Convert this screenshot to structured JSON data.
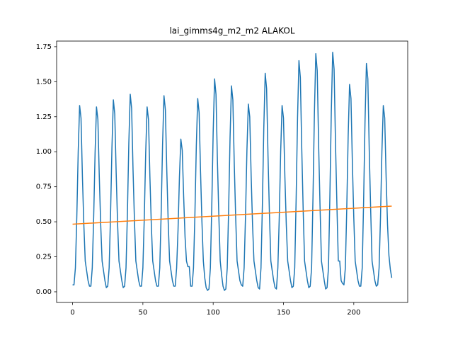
{
  "chart_data": {
    "type": "line",
    "title": "lai_gimms4g_m2_m2 ALAKOL",
    "xlim": [
      -11.35,
      238.35
    ],
    "ylim": [
      -0.076,
      1.79
    ],
    "xticks": [
      0,
      50,
      100,
      150,
      200
    ],
    "yticks": [
      {
        "value": 0,
        "label": "0.00"
      },
      {
        "value": 0.25,
        "label": "0.25"
      },
      {
        "value": 0.5,
        "label": "0.50"
      },
      {
        "value": 0.75,
        "label": "0.75"
      },
      {
        "value": 1,
        "label": "1.00"
      },
      {
        "value": 1.25,
        "label": "1.25"
      },
      {
        "value": 1.5,
        "label": "1.50"
      },
      {
        "value": 1.75,
        "label": "1.75"
      }
    ],
    "series": [
      {
        "color": "#1f77b4",
        "x": [
          0,
          1,
          2,
          3,
          4,
          5,
          6,
          7,
          8,
          9,
          10,
          11,
          12,
          13,
          14,
          15,
          16,
          17,
          18,
          19,
          20,
          21,
          22,
          23,
          24,
          25,
          26,
          27,
          28,
          29,
          30,
          31,
          32,
          33,
          34,
          35,
          36,
          37,
          38,
          39,
          40,
          41,
          42,
          43,
          44,
          45,
          46,
          47,
          48,
          49,
          50,
          51,
          52,
          53,
          54,
          55,
          56,
          57,
          58,
          59,
          60,
          61,
          62,
          63,
          64,
          65,
          66,
          67,
          68,
          69,
          70,
          71,
          72,
          73,
          74,
          75,
          76,
          77,
          78,
          79,
          80,
          81,
          82,
          83,
          84,
          85,
          86,
          87,
          88,
          89,
          90,
          91,
          92,
          93,
          94,
          95,
          96,
          97,
          98,
          99,
          100,
          101,
          102,
          103,
          104,
          105,
          106,
          107,
          108,
          109,
          110,
          111,
          112,
          113,
          114,
          115,
          116,
          117,
          118,
          119,
          120,
          121,
          122,
          123,
          124,
          125,
          126,
          127,
          128,
          129,
          130,
          131,
          132,
          133,
          134,
          135,
          136,
          137,
          138,
          139,
          140,
          141,
          142,
          143,
          144,
          145,
          146,
          147,
          148,
          149,
          150,
          151,
          152,
          153,
          154,
          155,
          156,
          157,
          158,
          159,
          160,
          161,
          162,
          163,
          164,
          165,
          166,
          167,
          168,
          169,
          170,
          171,
          172,
          173,
          174,
          175,
          176,
          177,
          178,
          179,
          180,
          181,
          182,
          183,
          184,
          185,
          186,
          187,
          188,
          189,
          190,
          191,
          192,
          193,
          194,
          195,
          196,
          197,
          198,
          199,
          200,
          201,
          202,
          203,
          204,
          205,
          206,
          207,
          208,
          209,
          210,
          211,
          212,
          213,
          214,
          215,
          216,
          217,
          218,
          219,
          220,
          221,
          222,
          223,
          224,
          225,
          226,
          227
        ],
        "values": [
          0.05,
          0.05,
          0.17,
          0.53,
          1.0,
          1.33,
          1.24,
          0.82,
          0.48,
          0.22,
          0.15,
          0.08,
          0.04,
          0.04,
          0.17,
          0.53,
          0.99,
          1.32,
          1.23,
          0.82,
          0.48,
          0.22,
          0.15,
          0.08,
          0.03,
          0.04,
          0.17,
          0.55,
          1.03,
          1.37,
          1.27,
          0.85,
          0.49,
          0.22,
          0.15,
          0.08,
          0.03,
          0.04,
          0.17,
          0.56,
          1.06,
          1.41,
          1.31,
          0.87,
          0.51,
          0.22,
          0.15,
          0.08,
          0.04,
          0.04,
          0.17,
          0.53,
          0.99,
          1.32,
          1.23,
          0.82,
          0.48,
          0.22,
          0.15,
          0.08,
          0.04,
          0.04,
          0.17,
          0.56,
          1.05,
          1.4,
          1.3,
          0.87,
          0.5,
          0.22,
          0.15,
          0.08,
          0.04,
          0.04,
          0.17,
          0.44,
          0.82,
          1.09,
          1.01,
          0.68,
          0.39,
          0.22,
          0.18,
          0.18,
          0.04,
          0.04,
          0.17,
          0.55,
          1.04,
          1.38,
          1.28,
          0.86,
          0.5,
          0.22,
          0.1,
          0.03,
          0.01,
          0.02,
          0.17,
          0.61,
          1.14,
          1.52,
          1.41,
          0.94,
          0.55,
          0.22,
          0.12,
          0.04,
          0.01,
          0.02,
          0.17,
          0.59,
          1.1,
          1.47,
          1.37,
          0.91,
          0.53,
          0.22,
          0.15,
          0.08,
          0.05,
          0.04,
          0.17,
          0.54,
          1.01,
          1.34,
          1.25,
          0.83,
          0.48,
          0.22,
          0.15,
          0.08,
          0.03,
          0.02,
          0.17,
          0.62,
          1.17,
          1.56,
          1.45,
          0.97,
          0.56,
          0.22,
          0.15,
          0.08,
          0.03,
          0.02,
          0.17,
          0.53,
          1.0,
          1.33,
          1.24,
          0.82,
          0.48,
          0.22,
          0.15,
          0.08,
          0.03,
          0.04,
          0.17,
          0.66,
          1.24,
          1.65,
          1.53,
          1.02,
          0.59,
          0.22,
          0.15,
          0.08,
          0.03,
          0.04,
          0.17,
          0.68,
          1.28,
          1.7,
          1.58,
          1.05,
          0.61,
          0.22,
          0.15,
          0.08,
          0.02,
          0.03,
          0.17,
          0.68,
          1.28,
          1.71,
          1.59,
          1.06,
          0.62,
          0.22,
          0.22,
          0.08,
          0.06,
          0.05,
          0.17,
          0.59,
          1.11,
          1.48,
          1.38,
          0.92,
          0.53,
          0.22,
          0.15,
          0.08,
          0.04,
          0.04,
          0.17,
          0.65,
          1.22,
          1.63,
          1.52,
          1.01,
          0.59,
          0.22,
          0.15,
          0.08,
          0.04,
          0.05,
          0.17,
          0.53,
          1.0,
          1.33,
          1.24,
          0.82,
          0.48,
          0.26,
          0.16,
          0.1
        ]
      },
      {
        "color": "#ff7f0e",
        "x": [
          0,
          227
        ],
        "values": [
          0.483,
          0.612
        ]
      }
    ]
  }
}
